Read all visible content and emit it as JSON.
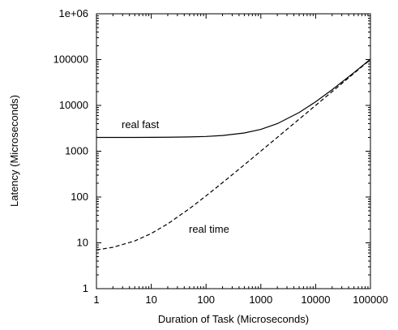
{
  "chart_data": {
    "type": "line",
    "title": "",
    "xlabel": "Duration of Task (Microseconds)",
    "ylabel": "Latency (Microseconds)",
    "x_scale": "log",
    "y_scale": "log",
    "xlim": [
      1,
      100000
    ],
    "ylim": [
      1,
      1000000
    ],
    "grid": false,
    "x_ticks": [
      "1",
      "10",
      "100",
      "1000",
      "10000",
      "100000"
    ],
    "y_ticks": [
      "1",
      "10",
      "100",
      "1000",
      "10000",
      "100000",
      "1e+06"
    ],
    "series": [
      {
        "name": "real fast",
        "style": "solid",
        "color": "#000000",
        "x": [
          1,
          2,
          5,
          10,
          20,
          50,
          100,
          200,
          500,
          1000,
          2000,
          5000,
          10000,
          20000,
          50000,
          100000
        ],
        "y": [
          2000,
          2000,
          2000,
          2010,
          2020,
          2050,
          2100,
          2200,
          2500,
          3000,
          4000,
          7000,
          12000,
          22000,
          52000,
          102000
        ]
      },
      {
        "name": "real time",
        "style": "dashed",
        "color": "#000000",
        "x": [
          1,
          2,
          5,
          10,
          20,
          50,
          100,
          200,
          500,
          1000,
          2000,
          5000,
          10000,
          20000,
          50000,
          100000
        ],
        "y": [
          7,
          8,
          11,
          16,
          26,
          56,
          106,
          206,
          506,
          1006,
          2006,
          5006,
          10006,
          20006,
          50006,
          100006
        ]
      }
    ]
  }
}
